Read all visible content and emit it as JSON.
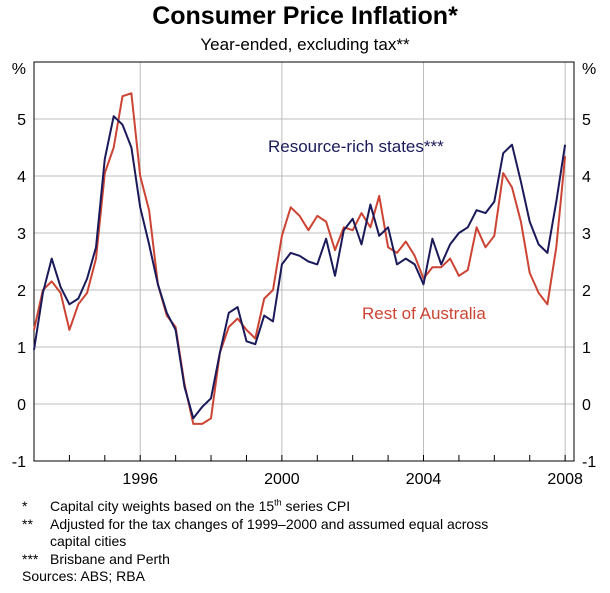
{
  "chart_data": {
    "type": "line",
    "title": "Consumer Price Inflation*",
    "subtitle": "Year-ended, excluding tax**",
    "ylabel_left": "%",
    "ylabel_right": "%",
    "ylim": [
      -1,
      6
    ],
    "yticks": [
      -1,
      0,
      1,
      2,
      3,
      4,
      5
    ],
    "xlim": [
      1993,
      2008.25
    ],
    "xticks": [
      1996,
      2000,
      2004,
      2008
    ],
    "grid": true,
    "series": [
      {
        "name": "Resource-rich states***",
        "color": "#1a1a5a",
        "x": [
          1993.0,
          1993.25,
          1993.5,
          1993.75,
          1994.0,
          1994.25,
          1994.5,
          1994.75,
          1995.0,
          1995.25,
          1995.5,
          1995.75,
          1996.0,
          1996.25,
          1996.5,
          1996.75,
          1997.0,
          1997.25,
          1997.5,
          1997.75,
          1998.0,
          1998.25,
          1998.5,
          1998.75,
          1999.0,
          1999.25,
          1999.5,
          1999.75,
          2000.0,
          2000.25,
          2000.5,
          2000.75,
          2001.0,
          2001.25,
          2001.5,
          2001.75,
          2002.0,
          2002.25,
          2002.5,
          2002.75,
          2003.0,
          2003.25,
          2003.5,
          2003.75,
          2004.0,
          2004.25,
          2004.5,
          2004.75,
          2005.0,
          2005.25,
          2005.5,
          2005.75,
          2006.0,
          2006.25,
          2006.5,
          2006.75,
          2007.0,
          2007.25,
          2007.5,
          2007.75,
          2008.0
        ],
        "values": [
          0.95,
          1.95,
          2.55,
          2.05,
          1.75,
          1.85,
          2.2,
          2.75,
          4.3,
          5.05,
          4.9,
          4.5,
          3.45,
          2.8,
          2.1,
          1.6,
          1.3,
          0.3,
          -0.25,
          -0.05,
          0.1,
          0.9,
          1.6,
          1.7,
          1.1,
          1.05,
          1.55,
          1.45,
          2.45,
          2.65,
          2.6,
          2.5,
          2.45,
          2.9,
          2.25,
          3.05,
          3.25,
          2.8,
          3.5,
          2.95,
          3.1,
          2.45,
          2.55,
          2.45,
          2.1,
          2.9,
          2.45,
          2.8,
          3.0,
          3.1,
          3.4,
          3.35,
          3.55,
          4.4,
          4.55,
          3.9,
          3.2,
          2.8,
          2.65,
          3.55,
          4.55
        ]
      },
      {
        "name": "Rest of Australia",
        "color": "#cc4433",
        "x": [
          1993.0,
          1993.25,
          1993.5,
          1993.75,
          1994.0,
          1994.25,
          1994.5,
          1994.75,
          1995.0,
          1995.25,
          1995.5,
          1995.75,
          1996.0,
          1996.25,
          1996.5,
          1996.75,
          1997.0,
          1997.25,
          1997.5,
          1997.75,
          1998.0,
          1998.25,
          1998.5,
          1998.75,
          1999.0,
          1999.25,
          1999.5,
          1999.75,
          2000.0,
          2000.25,
          2000.5,
          2000.75,
          2001.0,
          2001.25,
          2001.5,
          2001.75,
          2002.0,
          2002.25,
          2002.5,
          2002.75,
          2003.0,
          2003.25,
          2003.5,
          2003.75,
          2004.0,
          2004.25,
          2004.5,
          2004.75,
          2005.0,
          2005.25,
          2005.5,
          2005.75,
          2006.0,
          2006.25,
          2006.5,
          2006.75,
          2007.0,
          2007.25,
          2007.5,
          2007.75,
          2008.0
        ],
        "values": [
          1.3,
          2.0,
          2.15,
          1.95,
          1.3,
          1.75,
          1.95,
          2.55,
          4.05,
          4.5,
          5.4,
          5.45,
          4.0,
          3.4,
          2.1,
          1.55,
          1.35,
          0.35,
          -0.35,
          -0.35,
          -0.25,
          0.9,
          1.35,
          1.5,
          1.3,
          1.15,
          1.85,
          2.0,
          2.95,
          3.45,
          3.3,
          3.05,
          3.3,
          3.2,
          2.7,
          3.1,
          3.05,
          3.35,
          3.1,
          3.65,
          2.75,
          2.65,
          2.85,
          2.6,
          2.2,
          2.4,
          2.4,
          2.55,
          2.25,
          2.35,
          3.1,
          2.75,
          2.95,
          4.05,
          3.8,
          3.2,
          2.3,
          1.95,
          1.75,
          2.75,
          4.35
        ]
      }
    ],
    "annotations": [
      {
        "text": "Resource-rich states***",
        "series": 0
      },
      {
        "text": "Rest of Australia",
        "series": 1
      }
    ]
  },
  "notes": [
    {
      "mark": "*",
      "text_before": "Capital city weights based on the 15",
      "sup": "th",
      "text_after": " series CPI"
    },
    {
      "mark": "**",
      "text": "Adjusted for the tax changes of 1999–2000 and assumed equal across",
      "continuation": "capital cities"
    },
    {
      "mark": "***",
      "text": "Brisbane and Perth"
    }
  ],
  "sources": "Sources: ABS; RBA"
}
